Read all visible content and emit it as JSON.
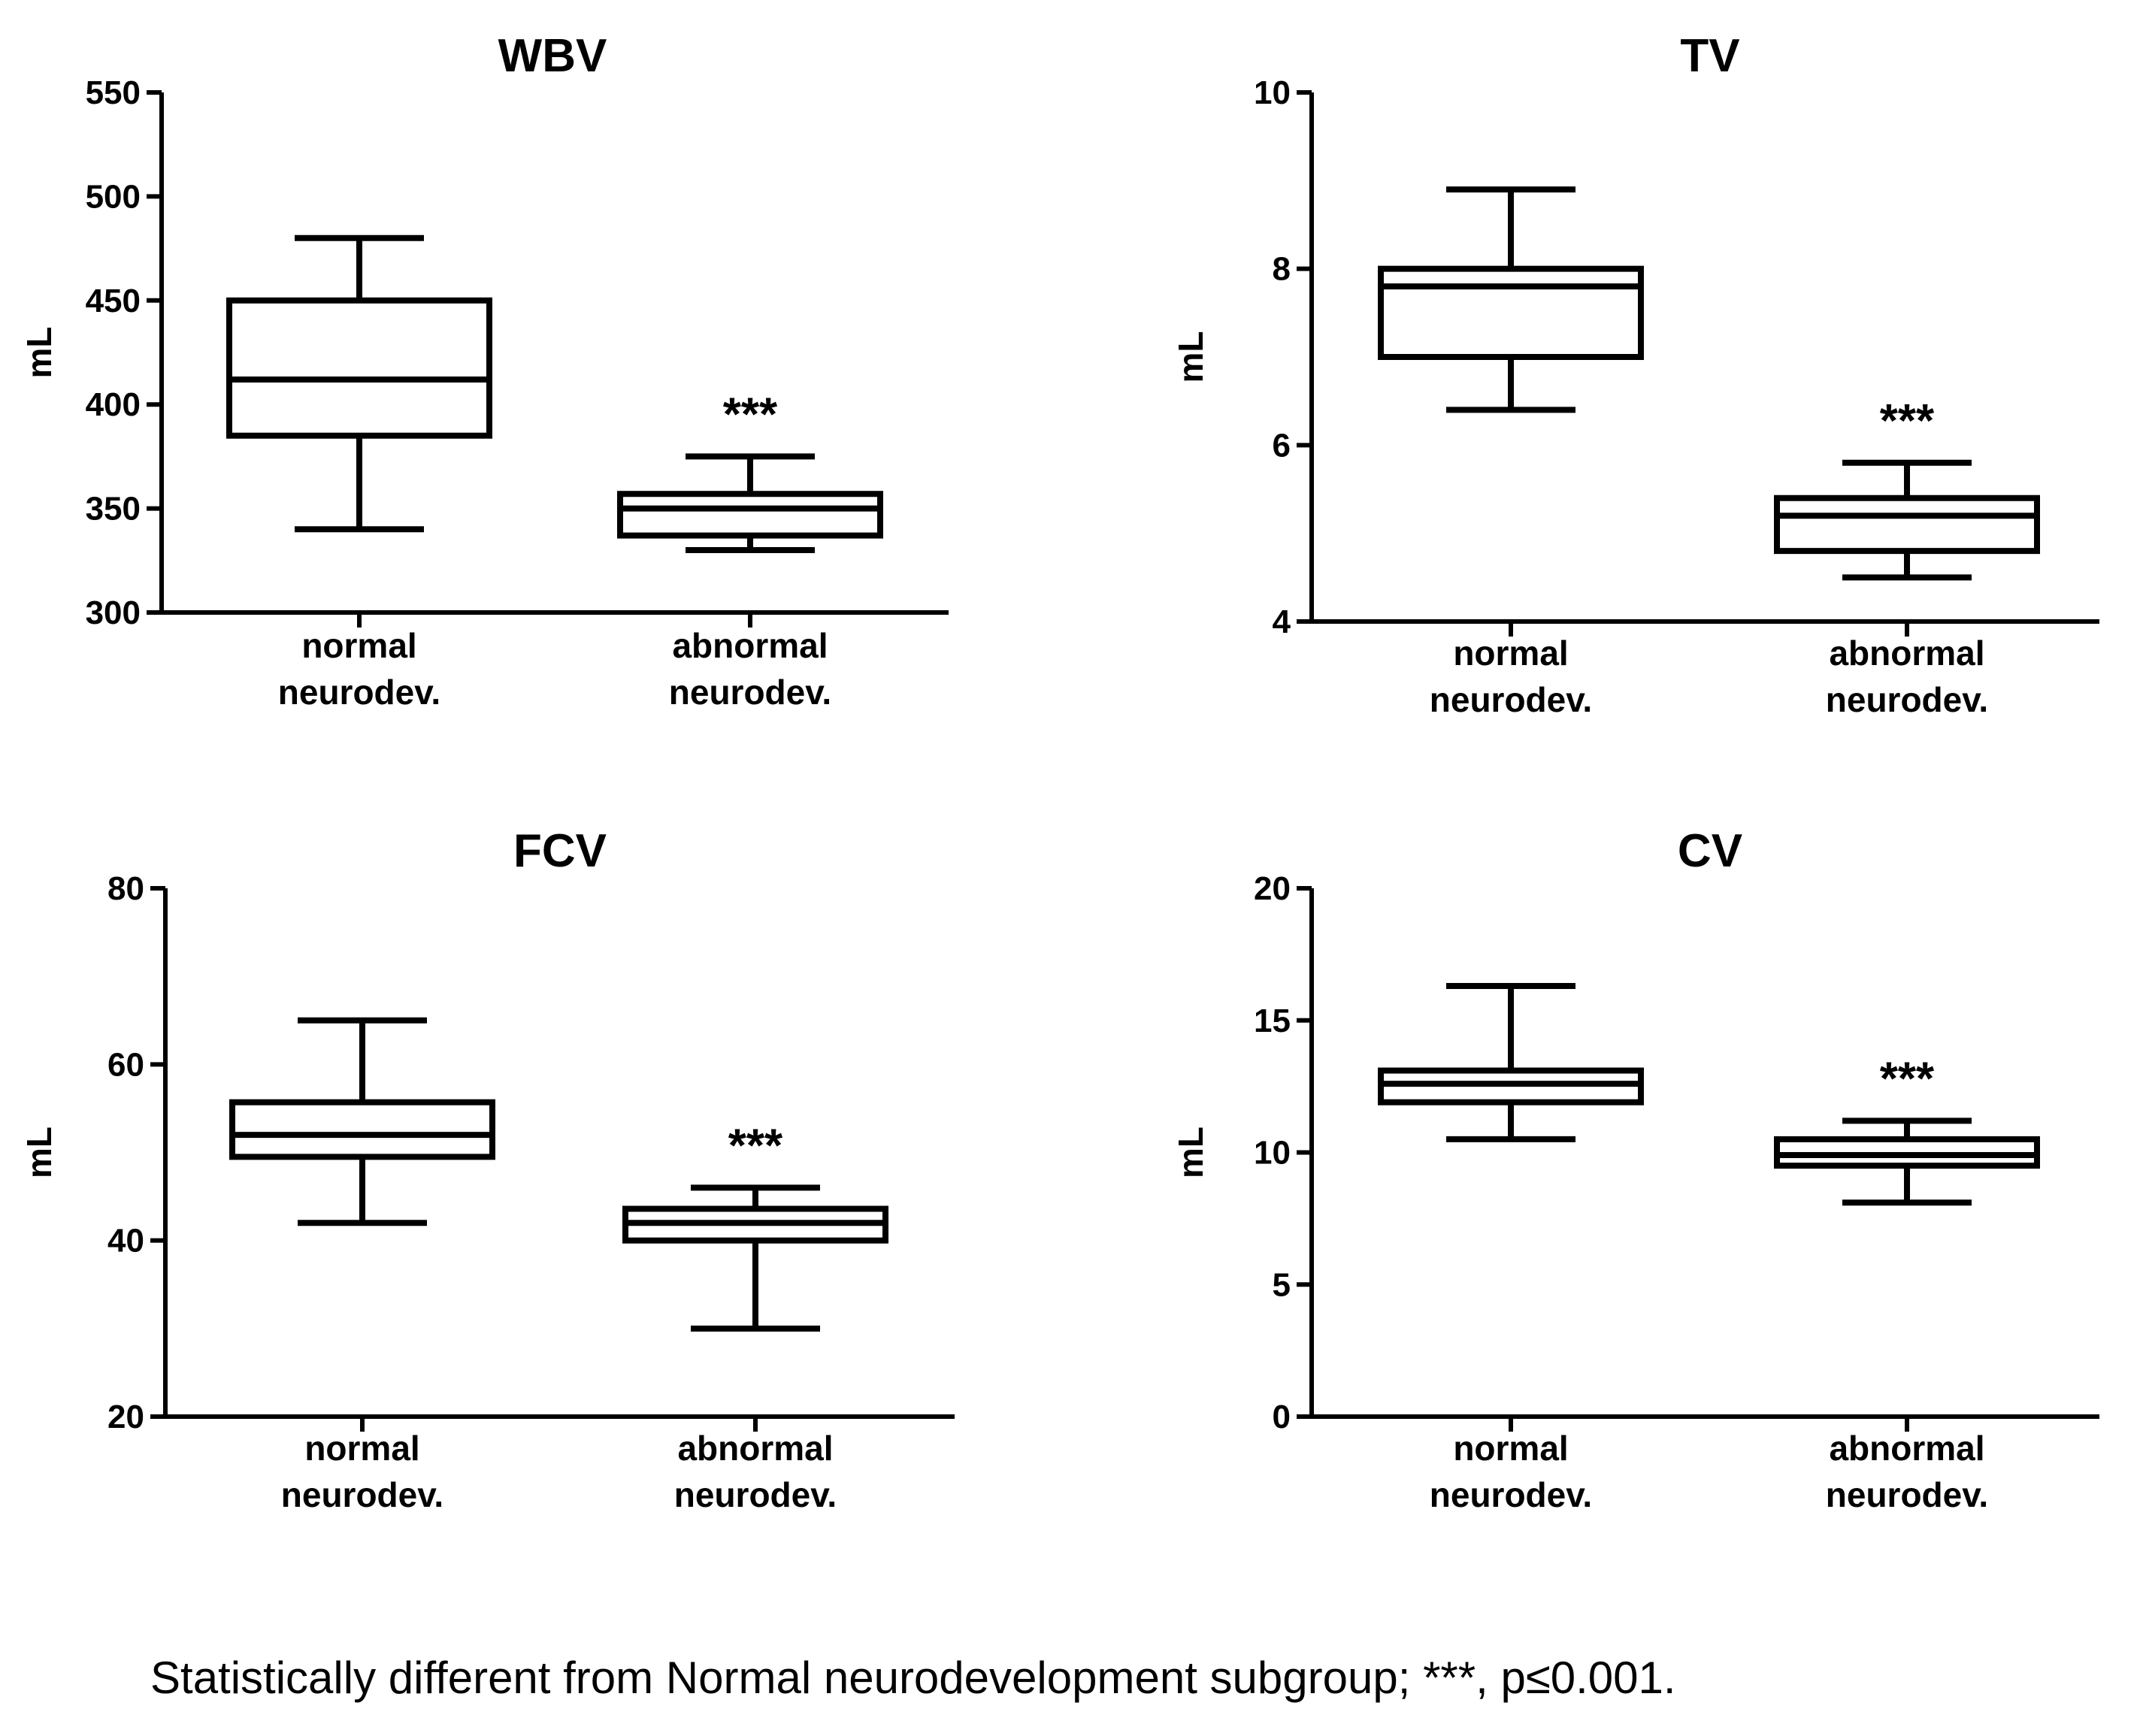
{
  "chart_data": [
    {
      "type": "box",
      "title": "WBV",
      "ylabel": "mL",
      "ylim": [
        300,
        550
      ],
      "yticks": [
        300,
        350,
        400,
        450,
        500,
        550
      ],
      "categories": [
        "normal\nneurodev.",
        "abnormal\nneurodev."
      ],
      "boxes": [
        {
          "min": 340,
          "q1": 385,
          "median": 412,
          "q3": 450,
          "max": 480,
          "annotation": ""
        },
        {
          "min": 330,
          "q1": 337,
          "median": 350,
          "q3": 357,
          "max": 375,
          "annotation": "***"
        }
      ]
    },
    {
      "type": "box",
      "title": "TV",
      "ylabel": "mL",
      "ylim": [
        4,
        10
      ],
      "yticks": [
        4,
        6,
        8,
        10
      ],
      "categories": [
        "normal\nneurodev.",
        "abnormal\nneurodev."
      ],
      "boxes": [
        {
          "min": 6.4,
          "q1": 7.0,
          "median": 7.8,
          "q3": 8.0,
          "max": 8.9,
          "annotation": ""
        },
        {
          "min": 4.5,
          "q1": 4.8,
          "median": 5.2,
          "q3": 5.4,
          "max": 5.8,
          "annotation": "***"
        }
      ]
    },
    {
      "type": "box",
      "title": "FCV",
      "ylabel": "mL",
      "ylim": [
        20,
        80
      ],
      "yticks": [
        20,
        40,
        60,
        80
      ],
      "categories": [
        "normal\nneurodev.",
        "abnormal\nneurodev."
      ],
      "boxes": [
        {
          "min": 42,
          "q1": 49.5,
          "median": 52,
          "q3": 55.7,
          "max": 65,
          "annotation": ""
        },
        {
          "min": 30,
          "q1": 40,
          "median": 42,
          "q3": 43.6,
          "max": 46,
          "annotation": "***"
        }
      ]
    },
    {
      "type": "box",
      "title": "CV",
      "ylabel": "mL",
      "ylim": [
        0,
        20
      ],
      "yticks": [
        0,
        5,
        10,
        15,
        20
      ],
      "categories": [
        "normal\nneurodev.",
        "abnormal\nneurodev."
      ],
      "boxes": [
        {
          "min": 10.5,
          "q1": 11.9,
          "median": 12.6,
          "q3": 13.1,
          "max": 16.3,
          "annotation": ""
        },
        {
          "min": 8.1,
          "q1": 9.5,
          "median": 9.9,
          "q3": 10.5,
          "max": 11.2,
          "annotation": "***"
        }
      ]
    }
  ],
  "footnote": "Statistically different from Normal neurodevelopment subgroup; ***, p≤0.001."
}
